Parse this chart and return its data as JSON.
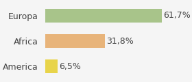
{
  "categories": [
    "America",
    "Africa",
    "Europa"
  ],
  "values": [
    6.5,
    31.8,
    61.7
  ],
  "labels": [
    "6,5%",
    "31,8%",
    "61,7%"
  ],
  "bar_colors": [
    "#e8d44a",
    "#e8b47a",
    "#a8c48a"
  ],
  "background_color": "#f5f5f5",
  "xlim": [
    0,
    75
  ],
  "label_fontsize": 9,
  "tick_fontsize": 9
}
